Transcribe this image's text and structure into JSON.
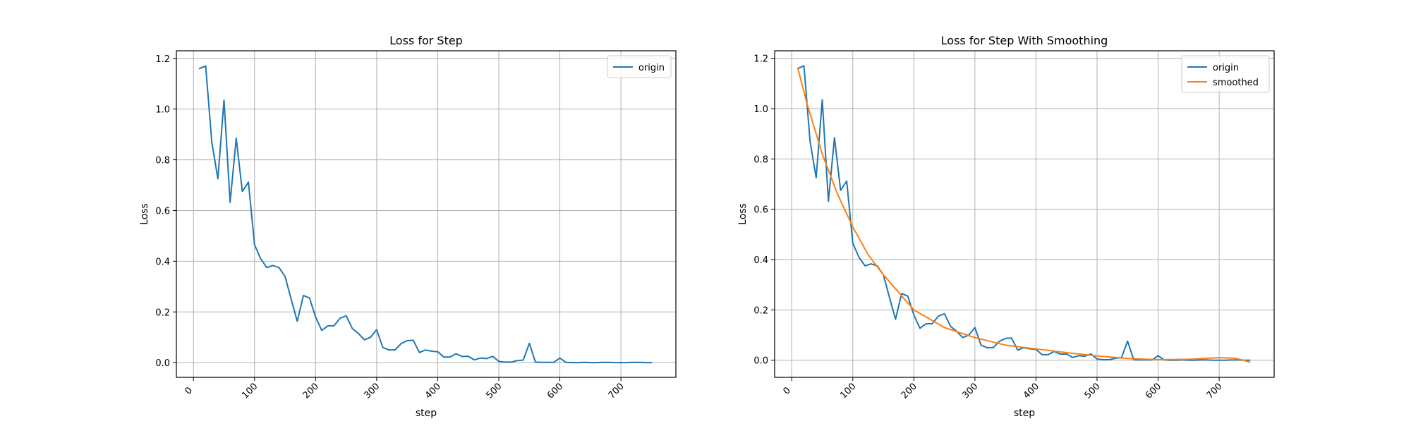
{
  "chart_data": [
    {
      "type": "line",
      "title": "Loss for Step",
      "xlabel": "step",
      "ylabel": "Loss",
      "xlim": [
        -28,
        790
      ],
      "ylim": [
        -0.058,
        1.23
      ],
      "xticks": [
        0,
        100,
        200,
        300,
        400,
        500,
        600,
        700
      ],
      "xtick_labels": [
        "0",
        "100",
        "200",
        "300",
        "400",
        "500",
        "600",
        "700"
      ],
      "yticks": [
        0.0,
        0.2,
        0.4,
        0.6,
        0.8,
        1.0,
        1.2
      ],
      "ytick_labels": [
        "0.0",
        "0.2",
        "0.4",
        "0.6",
        "0.8",
        "1.0",
        "1.2"
      ],
      "xtick_rotation": 45,
      "grid": true,
      "legend_position": "upper right",
      "series": [
        {
          "name": "origin",
          "color": "#1f77b4",
          "x": [
            10,
            20,
            30,
            40,
            50,
            60,
            70,
            80,
            90,
            100,
            110,
            120,
            130,
            140,
            150,
            160,
            170,
            180,
            190,
            200,
            210,
            220,
            230,
            240,
            250,
            260,
            270,
            280,
            290,
            300,
            310,
            320,
            330,
            340,
            350,
            360,
            370,
            380,
            390,
            400,
            410,
            420,
            430,
            440,
            450,
            460,
            470,
            480,
            490,
            500,
            510,
            520,
            530,
            540,
            550,
            560,
            570,
            580,
            590,
            600,
            610,
            620,
            630,
            640,
            650,
            660,
            670,
            680,
            690,
            700,
            710,
            720,
            730,
            740,
            750
          ],
          "y": [
            1.16,
            1.17,
            0.87,
            0.725,
            1.035,
            0.632,
            0.885,
            0.675,
            0.712,
            0.465,
            0.41,
            0.375,
            0.383,
            0.375,
            0.34,
            0.25,
            0.163,
            0.265,
            0.255,
            0.18,
            0.127,
            0.145,
            0.145,
            0.175,
            0.185,
            0.135,
            0.115,
            0.09,
            0.1,
            0.13,
            0.06,
            0.05,
            0.05,
            0.075,
            0.087,
            0.088,
            0.04,
            0.05,
            0.045,
            0.043,
            0.022,
            0.022,
            0.035,
            0.024,
            0.025,
            0.011,
            0.018,
            0.016,
            0.025,
            0.005,
            0.002,
            0.002,
            0.008,
            0.01,
            0.076,
            0.002,
            0.001,
            0.001,
            0.001,
            0.018,
            0.001,
            0.0,
            0.0,
            0.001,
            0.0,
            0.0,
            0.001,
            0.001,
            0.0,
            0.0,
            0.0,
            0.001,
            0.001,
            0.0,
            0.0
          ]
        }
      ]
    },
    {
      "type": "line",
      "title": "Loss for Step With Smoothing",
      "xlabel": "step",
      "ylabel": "Loss",
      "xlim": [
        -28,
        790
      ],
      "ylim": [
        -0.068,
        1.23
      ],
      "xticks": [
        0,
        100,
        200,
        300,
        400,
        500,
        600,
        700
      ],
      "xtick_labels": [
        "0",
        "100",
        "200",
        "300",
        "400",
        "500",
        "600",
        "700"
      ],
      "yticks": [
        0.0,
        0.2,
        0.4,
        0.6,
        0.8,
        1.0,
        1.2
      ],
      "ytick_labels": [
        "0.0",
        "0.2",
        "0.4",
        "0.6",
        "0.8",
        "1.0",
        "1.2"
      ],
      "xtick_rotation": 45,
      "grid": true,
      "legend_position": "upper right",
      "series": [
        {
          "name": "origin",
          "color": "#1f77b4",
          "x": [
            10,
            20,
            30,
            40,
            50,
            60,
            70,
            80,
            90,
            100,
            110,
            120,
            130,
            140,
            150,
            160,
            170,
            180,
            190,
            200,
            210,
            220,
            230,
            240,
            250,
            260,
            270,
            280,
            290,
            300,
            310,
            320,
            330,
            340,
            350,
            360,
            370,
            380,
            390,
            400,
            410,
            420,
            430,
            440,
            450,
            460,
            470,
            480,
            490,
            500,
            510,
            520,
            530,
            540,
            550,
            560,
            570,
            580,
            590,
            600,
            610,
            620,
            630,
            640,
            650,
            660,
            670,
            680,
            690,
            700,
            710,
            720,
            730,
            740,
            750
          ],
          "y": [
            1.16,
            1.17,
            0.87,
            0.725,
            1.035,
            0.632,
            0.885,
            0.675,
            0.712,
            0.465,
            0.41,
            0.375,
            0.383,
            0.375,
            0.34,
            0.25,
            0.163,
            0.265,
            0.255,
            0.18,
            0.127,
            0.145,
            0.145,
            0.175,
            0.185,
            0.135,
            0.115,
            0.09,
            0.1,
            0.13,
            0.06,
            0.05,
            0.05,
            0.075,
            0.087,
            0.088,
            0.04,
            0.05,
            0.045,
            0.043,
            0.022,
            0.022,
            0.035,
            0.024,
            0.025,
            0.011,
            0.018,
            0.016,
            0.025,
            0.005,
            0.002,
            0.002,
            0.008,
            0.01,
            0.076,
            0.002,
            0.001,
            0.001,
            0.001,
            0.018,
            0.001,
            0.0,
            0.0,
            0.001,
            0.0,
            0.0,
            0.001,
            0.001,
            0.0,
            0.0,
            0.0,
            0.001,
            0.001,
            0.0,
            0.0
          ]
        },
        {
          "name": "smoothed",
          "color": "#ff7f0e",
          "x": [
            10,
            25,
            50,
            75,
            100,
            125,
            150,
            175,
            200,
            250,
            300,
            350,
            400,
            450,
            500,
            550,
            600,
            650,
            700,
            725,
            740,
            750
          ],
          "y": [
            1.16,
            1.02,
            0.82,
            0.66,
            0.53,
            0.42,
            0.34,
            0.27,
            0.2,
            0.13,
            0.09,
            0.06,
            0.045,
            0.03,
            0.017,
            0.007,
            0.002,
            0.004,
            0.01,
            0.008,
            0.0,
            -0.008
          ]
        }
      ]
    }
  ]
}
